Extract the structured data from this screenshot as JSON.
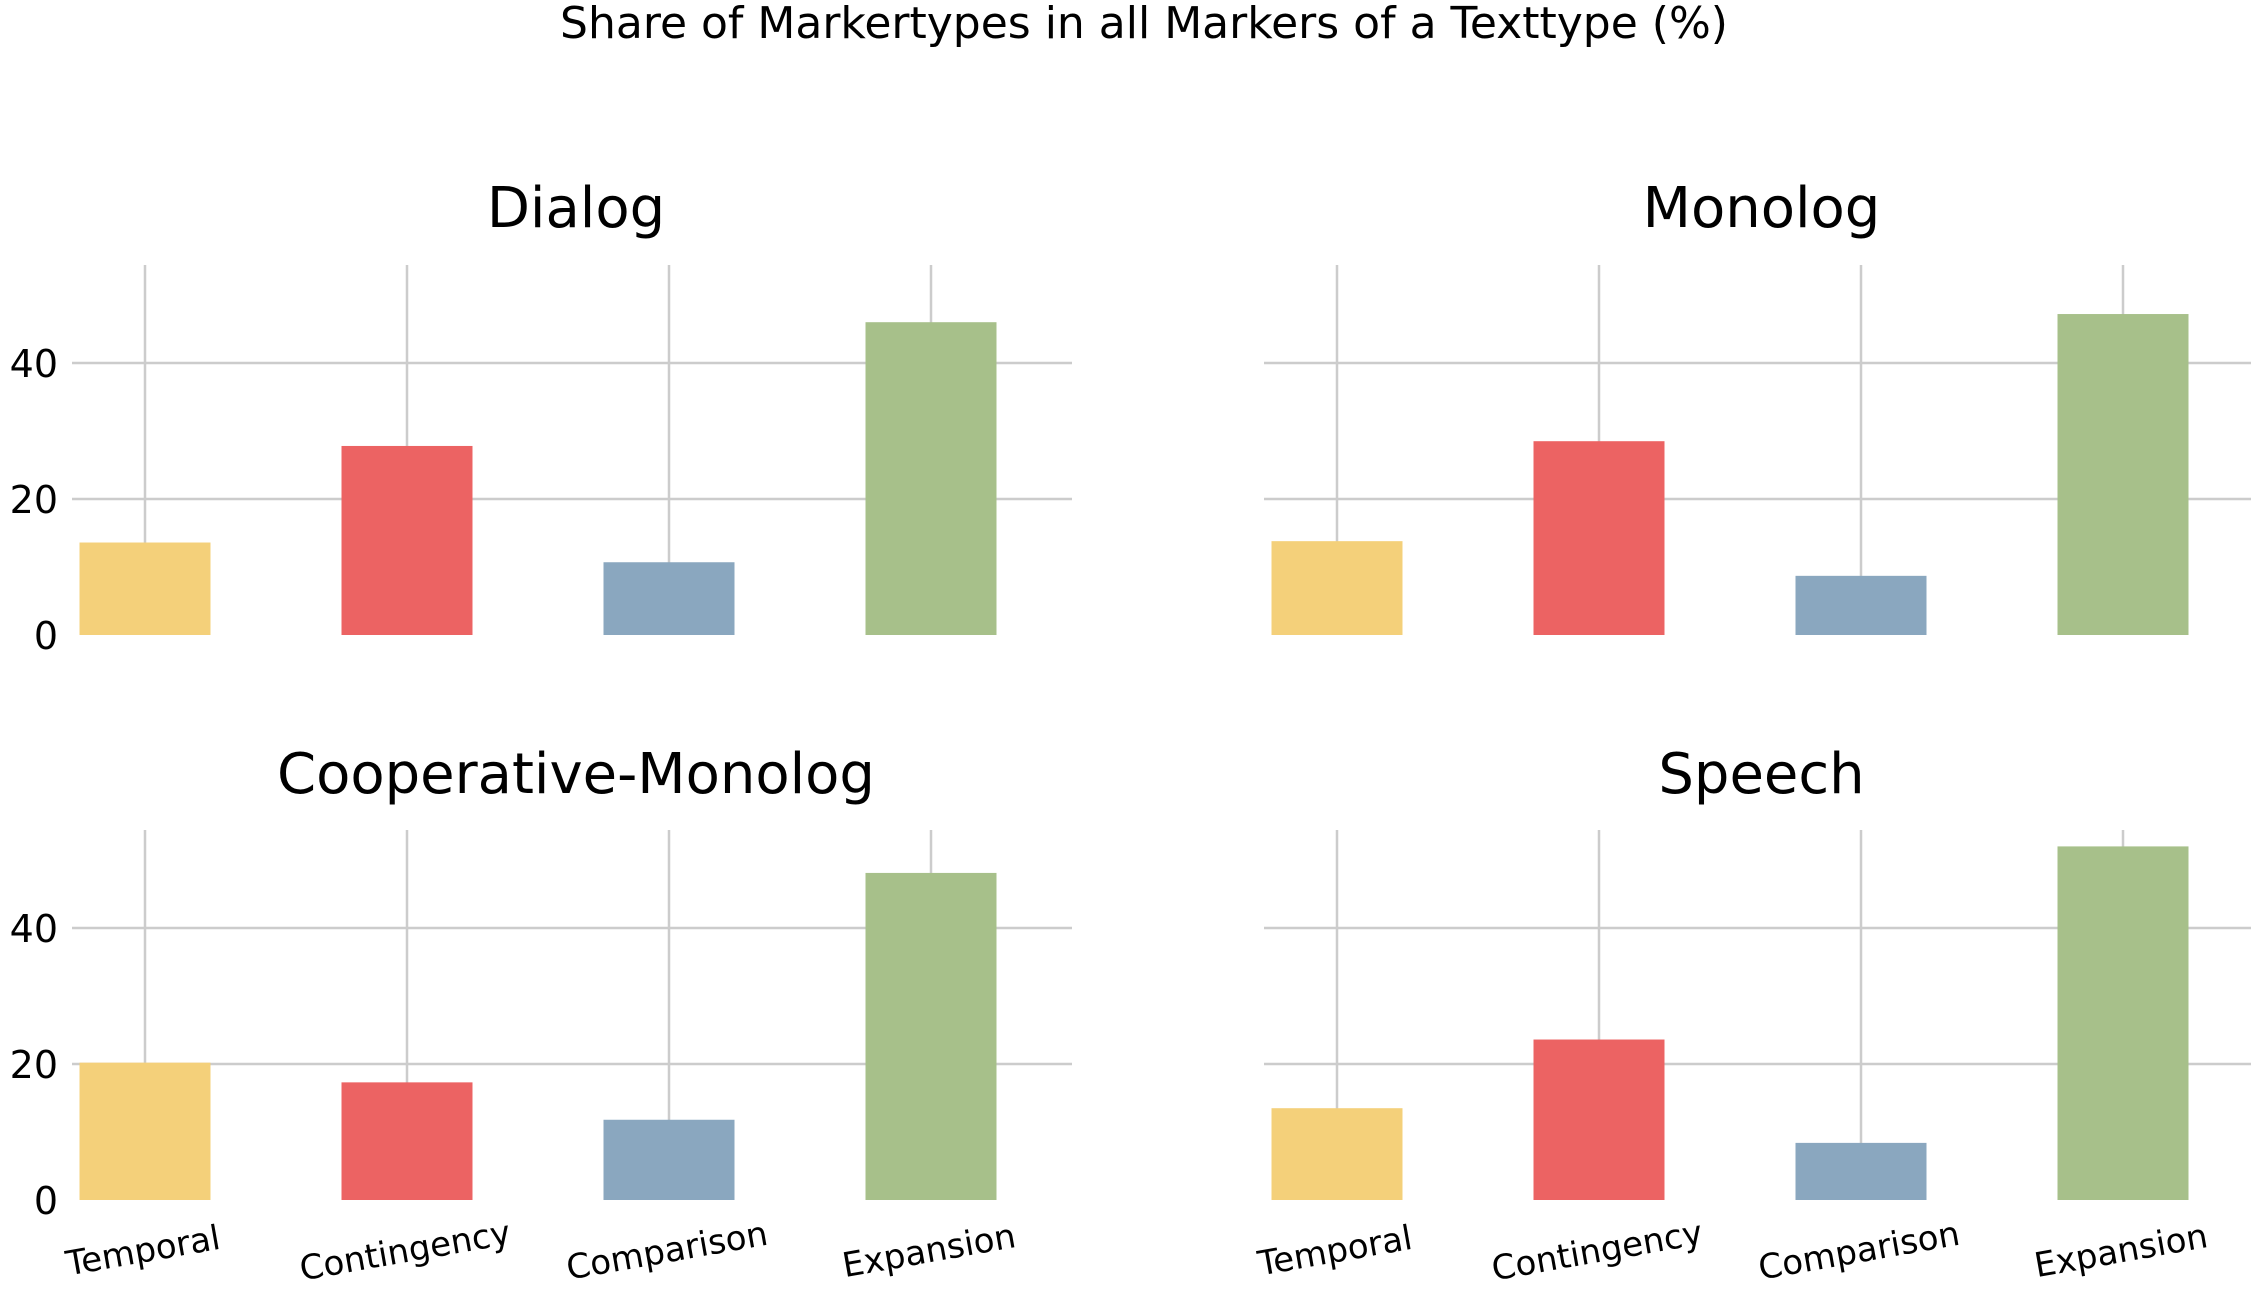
{
  "figure": {
    "suptitle": "Share of Markertypes in all Markers of a Texttype (%)"
  },
  "chart_data": [
    {
      "type": "bar",
      "title": "Dialog",
      "categories": [
        "Temporal",
        "Contingency",
        "Comparison",
        "Expansion"
      ],
      "values": [
        13.6,
        27.8,
        10.7,
        46.0
      ],
      "colors": [
        "#f4d07a",
        "#ec6363",
        "#8aa7bf",
        "#a7c08a"
      ],
      "yticks": [
        0,
        20,
        40
      ],
      "ylim": [
        0,
        54
      ],
      "grid": true,
      "show_xticklabels": false,
      "show_yticklabels": true
    },
    {
      "type": "bar",
      "title": "Monolog",
      "categories": [
        "Temporal",
        "Contingency",
        "Comparison",
        "Expansion"
      ],
      "values": [
        13.8,
        28.5,
        8.7,
        47.2
      ],
      "colors": [
        "#f4d07a",
        "#ec6363",
        "#8aa7bf",
        "#a7c08a"
      ],
      "yticks": [
        0,
        20,
        40
      ],
      "ylim": [
        0,
        54
      ],
      "grid": true,
      "show_xticklabels": false,
      "show_yticklabels": false
    },
    {
      "type": "bar",
      "title": "Cooperative-Monolog",
      "categories": [
        "Temporal",
        "Contingency",
        "Comparison",
        "Expansion"
      ],
      "values": [
        20.2,
        17.3,
        11.8,
        48.1
      ],
      "colors": [
        "#f4d07a",
        "#ec6363",
        "#8aa7bf",
        "#a7c08a"
      ],
      "yticks": [
        0,
        20,
        40
      ],
      "ylim": [
        0,
        54
      ],
      "grid": true,
      "show_xticklabels": true,
      "show_yticklabels": true
    },
    {
      "type": "bar",
      "title": "Speech",
      "categories": [
        "Temporal",
        "Contingency",
        "Comparison",
        "Expansion"
      ],
      "values": [
        13.5,
        23.6,
        8.4,
        52.0
      ],
      "colors": [
        "#f4d07a",
        "#ec6363",
        "#8aa7bf",
        "#a7c08a"
      ],
      "yticks": [
        0,
        20,
        40
      ],
      "ylim": [
        0,
        54
      ],
      "grid": true,
      "show_xticklabels": true,
      "show_yticklabels": false
    }
  ]
}
